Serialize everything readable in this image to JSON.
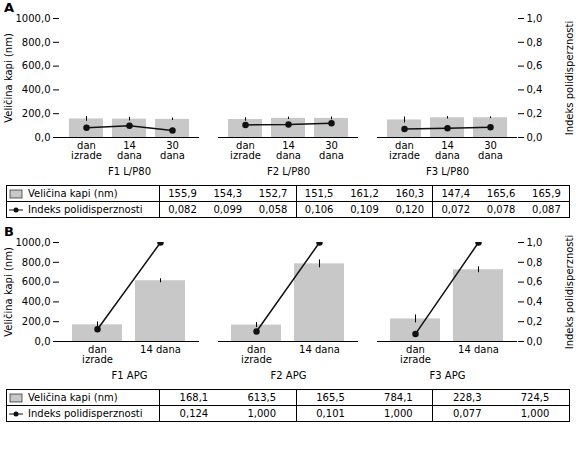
{
  "chart_data": [
    {
      "type": "bar",
      "title": "A",
      "groups": [
        "F1 L/P80",
        "F2 L/P80",
        "F3 L/P80"
      ],
      "categories": [
        "dan\nizrade",
        "14\ndana",
        "30\ndana"
      ],
      "ylabel": "Veličina kapi (nm)",
      "y2label": "Indeks polidisperznosti",
      "ylim": [
        0,
        1000
      ],
      "yticks": [
        {
          "value": 0,
          "label": "0,0"
        },
        {
          "value": 200,
          "label": "200,0"
        },
        {
          "value": 400,
          "label": "400,0"
        },
        {
          "value": 600,
          "label": "600,0"
        },
        {
          "value": 800,
          "label": "800,0"
        },
        {
          "value": 1000,
          "label": "1000,0"
        }
      ],
      "y2lim": [
        0,
        1.0
      ],
      "y2ticks": [
        {
          "value": 0.0,
          "label": "0,0"
        },
        {
          "value": 0.2,
          "label": "0,2"
        },
        {
          "value": 0.4,
          "label": "0,4"
        },
        {
          "value": 0.6,
          "label": "0,6"
        },
        {
          "value": 0.8,
          "label": "0,8"
        },
        {
          "value": 1.0,
          "label": "1,0"
        }
      ],
      "grid": false,
      "series": [
        {
          "name": "Veličina kapi (nm)",
          "type": "bar",
          "color": "#c8c8c8",
          "values": [
            [
              155.9,
              154.3,
              152.7
            ],
            [
              151.5,
              161.2,
              160.3
            ],
            [
              147.4,
              165.6,
              165.9
            ]
          ],
          "errors": [
            [
              20,
              15,
              10
            ],
            [
              15,
              10,
              12
            ],
            [
              25,
              10,
              8
            ]
          ],
          "value_labels": [
            [
              "155,9",
              "154,3",
              "152,7"
            ],
            [
              "151,5",
              "161,2",
              "160,3"
            ],
            [
              "147,4",
              "165,6",
              "165,9"
            ]
          ]
        },
        {
          "name": "Indeks polidisperznosti",
          "type": "line",
          "axis": "y2",
          "color": "#111111",
          "marker": "o",
          "values": [
            [
              0.082,
              0.099,
              0.058
            ],
            [
              0.106,
              0.109,
              0.12
            ],
            [
              0.072,
              0.078,
              0.087
            ]
          ],
          "errors": [
            [
              0.02,
              0.015,
              0.01
            ],
            [
              0.015,
              0.01,
              0.01
            ],
            [
              0.01,
              0.008,
              0.008
            ]
          ],
          "value_labels": [
            [
              "0,082",
              "0,099",
              "0,058"
            ],
            [
              "0,106",
              "0,109",
              "0,120"
            ],
            [
              "0,072",
              "0,078",
              "0,087"
            ]
          ]
        }
      ]
    },
    {
      "type": "bar",
      "title": "B",
      "groups": [
        "F1 APG",
        "F2 APG",
        "F3 APG"
      ],
      "categories": [
        "dan\nizrade",
        "14 dana"
      ],
      "ylabel": "Veličina kapi (nm)",
      "y2label": "Indeks polidisperznosti",
      "ylim": [
        0,
        1000
      ],
      "yticks": [
        {
          "value": 0,
          "label": "0,0"
        },
        {
          "value": 200,
          "label": "200,0"
        },
        {
          "value": 400,
          "label": "400,0"
        },
        {
          "value": 600,
          "label": "600,0"
        },
        {
          "value": 800,
          "label": "800,0"
        },
        {
          "value": 1000,
          "label": "1000,0"
        }
      ],
      "y2lim": [
        0,
        1.0
      ],
      "y2ticks": [
        {
          "value": 0.0,
          "label": "0,0"
        },
        {
          "value": 0.2,
          "label": "0,2"
        },
        {
          "value": 0.4,
          "label": "0,4"
        },
        {
          "value": 0.6,
          "label": "0,6"
        },
        {
          "value": 0.8,
          "label": "0,8"
        },
        {
          "value": 1.0,
          "label": "1,0"
        }
      ],
      "grid": false,
      "series": [
        {
          "name": "Veličina kapi (nm)",
          "type": "bar",
          "color": "#c8c8c8",
          "values": [
            [
              168.1,
              613.5
            ],
            [
              165.5,
              784.1
            ],
            [
              228.3,
              724.5
            ]
          ],
          "errors": [
            [
              30,
              20
            ],
            [
              25,
              40
            ],
            [
              40,
              30
            ]
          ],
          "value_labels": [
            [
              "168,1",
              "613,5"
            ],
            [
              "165,5",
              "784,1"
            ],
            [
              "228,3",
              "724,5"
            ]
          ]
        },
        {
          "name": "Indeks polidisperznosti",
          "type": "line",
          "axis": "y2",
          "color": "#111111",
          "marker": "o",
          "values": [
            [
              0.124,
              1.0
            ],
            [
              0.101,
              1.0
            ],
            [
              0.077,
              1.0
            ]
          ],
          "errors": [
            [
              0.02,
              0.0
            ],
            [
              0.015,
              0.0
            ],
            [
              0.01,
              0.0
            ]
          ],
          "value_labels": [
            [
              "0,124",
              "1,000"
            ],
            [
              "0,101",
              "1,000"
            ],
            [
              "0,077",
              "1,000"
            ]
          ]
        }
      ]
    }
  ]
}
